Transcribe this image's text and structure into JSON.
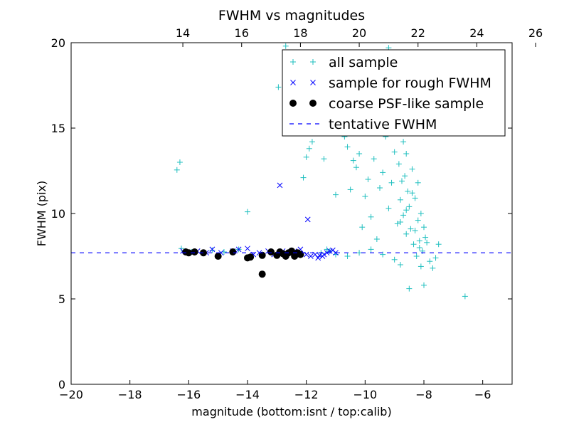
{
  "chart_data": {
    "type": "scatter",
    "title": "FWHM vs magnitudes",
    "xlabel": "magnitude (bottom:isnt / top:calib)",
    "ylabel": "FWHM (pix)",
    "xlim": [
      -20,
      -5
    ],
    "ylim": [
      0,
      20
    ],
    "xticks": [
      -20,
      -18,
      -16,
      -14,
      -12,
      -10,
      -8,
      -6
    ],
    "xtick_labels": [
      "−20",
      "−18",
      "−16",
      "−14",
      "−12",
      "−10",
      "−8",
      "−6"
    ],
    "yticks": [
      0,
      5,
      10,
      15,
      20
    ],
    "ytick_labels": [
      "0",
      "5",
      "10",
      "15",
      "20"
    ],
    "top_axis": {
      "offset": 30.2,
      "ticks": [
        14,
        16,
        18,
        20,
        22,
        24,
        26
      ],
      "tick_labels": [
        "14",
        "16",
        "18",
        "20",
        "22",
        "24",
        "26"
      ]
    },
    "grid": false,
    "legend_position": "top-right",
    "series": [
      {
        "name": "all sample",
        "marker": "plus",
        "color": "#1fbfbf",
        "points": [
          [
            -16.4,
            12.55
          ],
          [
            -16.3,
            13.0
          ],
          [
            -16.25,
            7.95
          ],
          [
            -16.1,
            7.8
          ],
          [
            -15.9,
            7.75
          ],
          [
            -15.5,
            7.7
          ],
          [
            -15.2,
            7.85
          ],
          [
            -14.8,
            7.75
          ],
          [
            -14.3,
            7.9
          ],
          [
            -14.0,
            10.1
          ],
          [
            -13.5,
            7.6
          ],
          [
            -13.0,
            7.55
          ],
          [
            -12.95,
            17.4
          ],
          [
            -12.7,
            19.8
          ],
          [
            -12.6,
            7.7
          ],
          [
            -12.3,
            7.6
          ],
          [
            -12.1,
            12.1
          ],
          [
            -12.0,
            13.3
          ],
          [
            -11.9,
            13.8
          ],
          [
            -11.8,
            14.2
          ],
          [
            -11.4,
            13.2
          ],
          [
            -11.0,
            11.1
          ],
          [
            -10.9,
            17.1
          ],
          [
            -10.7,
            14.5
          ],
          [
            -10.6,
            13.9
          ],
          [
            -10.5,
            11.4
          ],
          [
            -10.4,
            13.1
          ],
          [
            -10.3,
            12.7
          ],
          [
            -10.2,
            13.5
          ],
          [
            -10.1,
            9.2
          ],
          [
            -10.0,
            11.0
          ],
          [
            -9.9,
            12.0
          ],
          [
            -9.8,
            9.8
          ],
          [
            -9.7,
            13.2
          ],
          [
            -9.6,
            8.5
          ],
          [
            -9.5,
            11.5
          ],
          [
            -9.4,
            12.4
          ],
          [
            -9.3,
            14.5
          ],
          [
            -9.2,
            10.3
          ],
          [
            -9.1,
            11.8
          ],
          [
            -9.0,
            13.6
          ],
          [
            -8.9,
            9.4
          ],
          [
            -8.85,
            12.9
          ],
          [
            -8.8,
            10.8
          ],
          [
            -8.75,
            11.9
          ],
          [
            -8.7,
            9.9
          ],
          [
            -8.65,
            12.2
          ],
          [
            -8.6,
            8.8
          ],
          [
            -8.55,
            11.3
          ],
          [
            -8.5,
            10.4
          ],
          [
            -8.45,
            9.1
          ],
          [
            -8.4,
            12.6
          ],
          [
            -8.35,
            8.2
          ],
          [
            -8.3,
            10.9
          ],
          [
            -8.25,
            7.5
          ],
          [
            -8.2,
            9.6
          ],
          [
            -8.15,
            8.4
          ],
          [
            -8.1,
            6.9
          ],
          [
            -8.05,
            7.8
          ],
          [
            -8.0,
            5.8
          ],
          [
            -7.9,
            8.3
          ],
          [
            -7.8,
            7.2
          ],
          [
            -7.7,
            6.8
          ],
          [
            -7.6,
            7.4
          ],
          [
            -7.5,
            8.2
          ],
          [
            -8.5,
            5.6
          ],
          [
            -8.8,
            7.0
          ],
          [
            -9.0,
            7.3
          ],
          [
            -9.4,
            7.6
          ],
          [
            -9.8,
            7.9
          ],
          [
            -10.2,
            7.7
          ],
          [
            -10.6,
            7.5
          ],
          [
            -11.0,
            7.6
          ],
          [
            -11.2,
            7.8
          ],
          [
            -11.3,
            7.9
          ],
          [
            -11.5,
            7.7
          ],
          [
            -8.6,
            13.5
          ],
          [
            -8.7,
            14.2
          ],
          [
            -8.5,
            15.0
          ],
          [
            -9.1,
            15.6
          ],
          [
            -9.3,
            16.3
          ],
          [
            -9.6,
            17.0
          ],
          [
            -9.2,
            19.7
          ],
          [
            -8.7,
            19.2
          ],
          [
            -8.4,
            17.8
          ],
          [
            -9.0,
            18.4
          ],
          [
            -9.5,
            18.9
          ],
          [
            -10.0,
            16.8
          ],
          [
            -8.3,
            16.0
          ],
          [
            -8.9,
            16.5
          ],
          [
            -6.6,
            5.15
          ],
          [
            -8.2,
            11.8
          ],
          [
            -8.4,
            11.2
          ],
          [
            -8.6,
            10.2
          ],
          [
            -8.8,
            9.5
          ],
          [
            -8.3,
            9.0
          ],
          [
            -8.1,
            10.0
          ],
          [
            -8.0,
            9.2
          ],
          [
            -7.95,
            8.6
          ],
          [
            -8.15,
            8.0
          ]
        ]
      },
      {
        "name": "sample for rough FWHM",
        "marker": "x",
        "color": "#0000ff",
        "points": [
          [
            -16.2,
            7.8
          ],
          [
            -16.0,
            7.7
          ],
          [
            -15.7,
            7.8
          ],
          [
            -15.4,
            7.7
          ],
          [
            -15.2,
            7.9
          ],
          [
            -14.9,
            7.7
          ],
          [
            -14.5,
            7.8
          ],
          [
            -14.3,
            7.9
          ],
          [
            -14.0,
            7.95
          ],
          [
            -13.8,
            7.6
          ],
          [
            -13.6,
            7.7
          ],
          [
            -13.3,
            7.8
          ],
          [
            -13.1,
            7.6
          ],
          [
            -12.9,
            11.65
          ],
          [
            -12.8,
            7.8
          ],
          [
            -12.6,
            7.7
          ],
          [
            -12.4,
            7.8
          ],
          [
            -12.2,
            7.9
          ],
          [
            -12.0,
            7.6
          ],
          [
            -11.85,
            7.5
          ],
          [
            -11.7,
            7.6
          ],
          [
            -11.55,
            7.55
          ],
          [
            -11.4,
            7.6
          ],
          [
            -11.3,
            7.7
          ],
          [
            -11.2,
            7.8
          ],
          [
            -11.1,
            7.85
          ],
          [
            -11.0,
            7.7
          ],
          [
            -11.95,
            9.65
          ],
          [
            -11.6,
            7.4
          ],
          [
            -11.45,
            7.5
          ]
        ]
      },
      {
        "name": "coarse PSF-like sample",
        "marker": "circle",
        "color": "#000000",
        "points": [
          [
            -16.1,
            7.75
          ],
          [
            -16.0,
            7.7
          ],
          [
            -15.8,
            7.75
          ],
          [
            -15.5,
            7.7
          ],
          [
            -15.0,
            7.5
          ],
          [
            -14.5,
            7.75
          ],
          [
            -14.0,
            7.4
          ],
          [
            -13.5,
            6.45
          ],
          [
            -13.5,
            7.55
          ],
          [
            -13.2,
            7.75
          ],
          [
            -13.0,
            7.55
          ],
          [
            -12.9,
            7.75
          ],
          [
            -12.8,
            7.65
          ],
          [
            -12.7,
            7.5
          ],
          [
            -12.6,
            7.7
          ],
          [
            -12.5,
            7.8
          ],
          [
            -12.4,
            7.5
          ],
          [
            -12.3,
            7.7
          ],
          [
            -12.2,
            7.6
          ],
          [
            -13.9,
            7.45
          ]
        ]
      },
      {
        "name": "tentative FWHM",
        "marker": "dashed-line",
        "color": "#0000ff",
        "y": 7.7
      }
    ]
  }
}
